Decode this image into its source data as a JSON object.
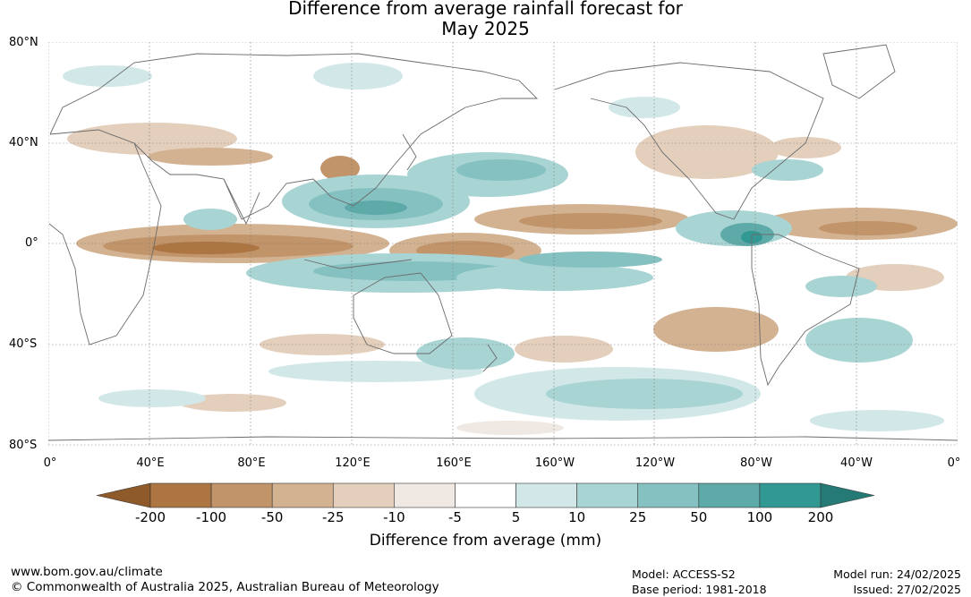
{
  "title": {
    "line1": "Difference from average rainfall forecast for",
    "line2": "May 2025"
  },
  "map": {
    "lat_labels": [
      "80°N",
      "40°N",
      "0°",
      "40°S",
      "80°S"
    ],
    "lon_labels": [
      "0°",
      "40°E",
      "80°E",
      "120°E",
      "160°E",
      "160°W",
      "120°W",
      "80°W",
      "40°W",
      "0°"
    ],
    "lat_values": [
      80,
      40,
      0,
      -40,
      -80
    ],
    "lon_values": [
      0,
      40,
      80,
      120,
      160,
      200,
      240,
      280,
      320,
      360
    ],
    "grid": "dotted",
    "projection": "equirectangular"
  },
  "colorbar": {
    "title": "Difference from average (mm)",
    "tick_labels": [
      "-200",
      "-100",
      "-50",
      "-25",
      "-10",
      "-5",
      "5",
      "10",
      "25",
      "50",
      "100",
      "200"
    ],
    "colors": [
      "#8f5a2a",
      "#ad7542",
      "#c1946a",
      "#d3b292",
      "#e3cfbc",
      "#f0e9e3",
      "#ffffff",
      "#d2e8e8",
      "#a9d4d4",
      "#86c1c1",
      "#5eaaa8",
      "#319894",
      "#257a76"
    ],
    "extend": "both"
  },
  "footer": {
    "url": "www.bom.gov.au/climate",
    "copyright": "© Commonwealth of Australia 2025, Australian Bureau of Meteorology",
    "model": "Model: ACCESS-S2",
    "base_period": "Base period: 1981-2018",
    "model_run": "Model run: 24/02/2025",
    "issued": "Issued: 27/02/2025"
  }
}
